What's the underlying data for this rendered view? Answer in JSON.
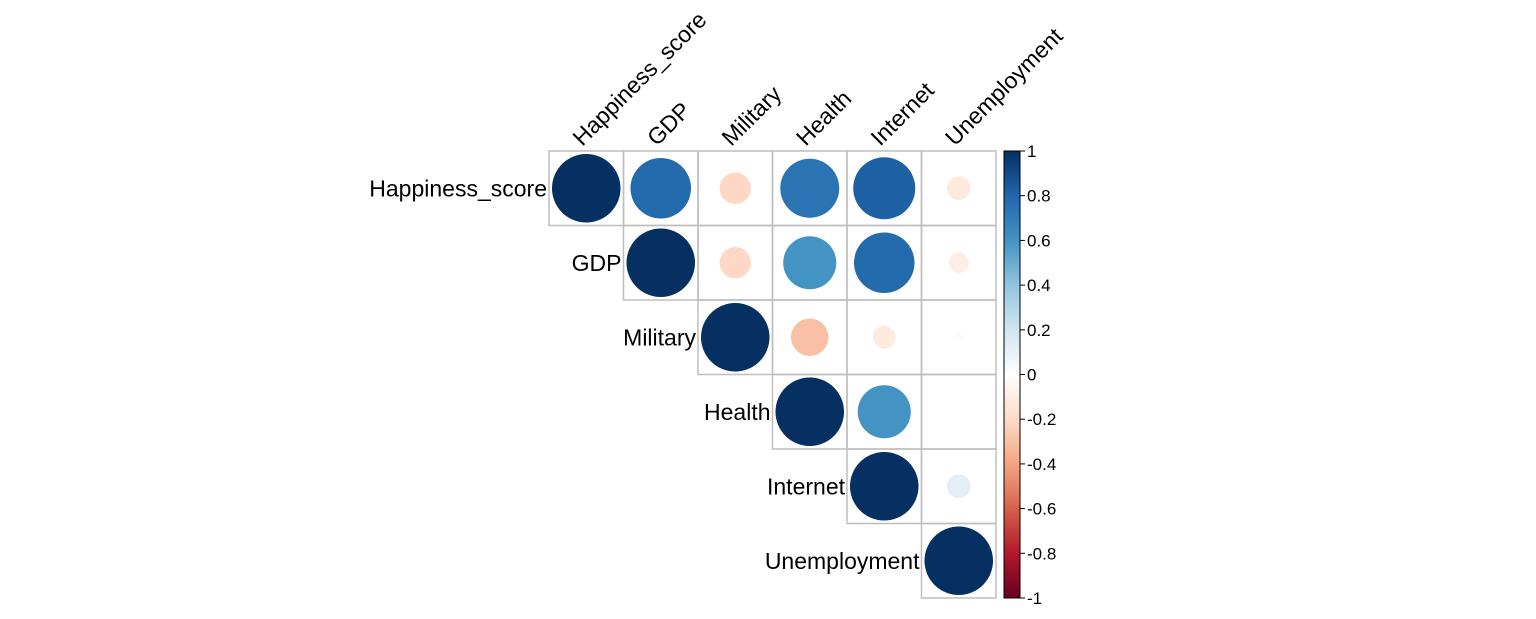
{
  "chart_data": {
    "type": "heatmap",
    "subtype": "correlation-circle-upper",
    "variables": [
      "Happiness_score",
      "GDP",
      "Military",
      "Health",
      "Internet",
      "Unemployment"
    ],
    "matrix": [
      [
        1.0,
        0.78,
        -0.21,
        0.74,
        0.82,
        -0.12
      ],
      [
        0.78,
        1.0,
        -0.21,
        0.6,
        0.78,
        -0.09
      ],
      [
        -0.21,
        -0.21,
        1.0,
        -0.3,
        -0.11,
        0.02
      ],
      [
        0.74,
        0.6,
        -0.3,
        1.0,
        0.6,
        0.01
      ],
      [
        0.82,
        0.78,
        -0.11,
        0.6,
        1.0,
        0.12
      ],
      [
        -0.12,
        -0.09,
        0.02,
        0.01,
        0.12,
        1.0
      ]
    ],
    "value_range": [
      -1,
      1
    ],
    "legend": {
      "ticks": [
        "1",
        "0.8",
        "0.6",
        "0.4",
        "0.2",
        "0",
        "-0.2",
        "-0.4",
        "-0.6",
        "-0.8",
        "-1"
      ],
      "position": "right"
    },
    "colors": {
      "negative_end": "#67001F",
      "neutral": "#FFFFFF",
      "positive_end": "#053061",
      "grid": "#BEBEBE",
      "legend_border": "#000000"
    },
    "grid": true
  }
}
